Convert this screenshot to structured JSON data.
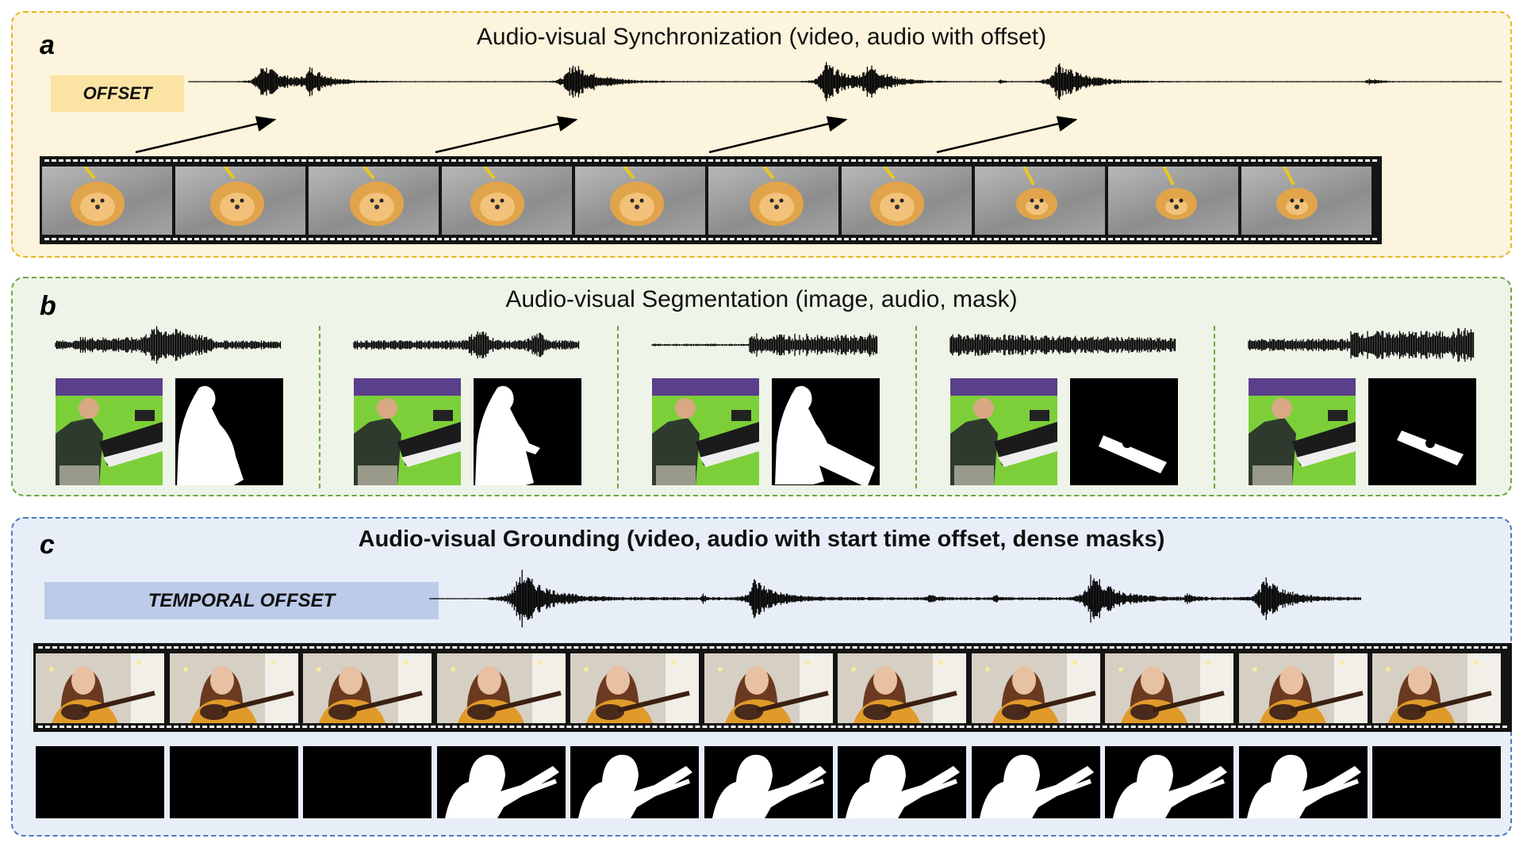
{
  "panel_a": {
    "letter": "a",
    "title": "Audio-visual Synchronization (video, audio with offset)",
    "offset_label": "OFFSET",
    "frame_count": 10
  },
  "panel_b": {
    "letter": "b",
    "title": "Audio-visual Segmentation (image, audio, mask)",
    "group_count": 5
  },
  "panel_c": {
    "letter": "c",
    "title": "Audio-visual Grounding (video, audio with start time offset, dense masks)",
    "offset_label": "TEMPORAL OFFSET",
    "frame_count": 11,
    "mask_has_object": [
      false,
      false,
      false,
      true,
      true,
      true,
      true,
      true,
      true,
      true,
      false
    ]
  },
  "colors": {
    "panel_a_bg": "#fcf4dc",
    "panel_a_border": "#e8b820",
    "panel_b_bg": "#eef4e8",
    "panel_b_border": "#6aa840",
    "panel_c_bg": "#e8eef8",
    "panel_c_border": "#4a78c0",
    "offset_a": "#fbe3a4",
    "offset_c": "#bccbe8"
  }
}
